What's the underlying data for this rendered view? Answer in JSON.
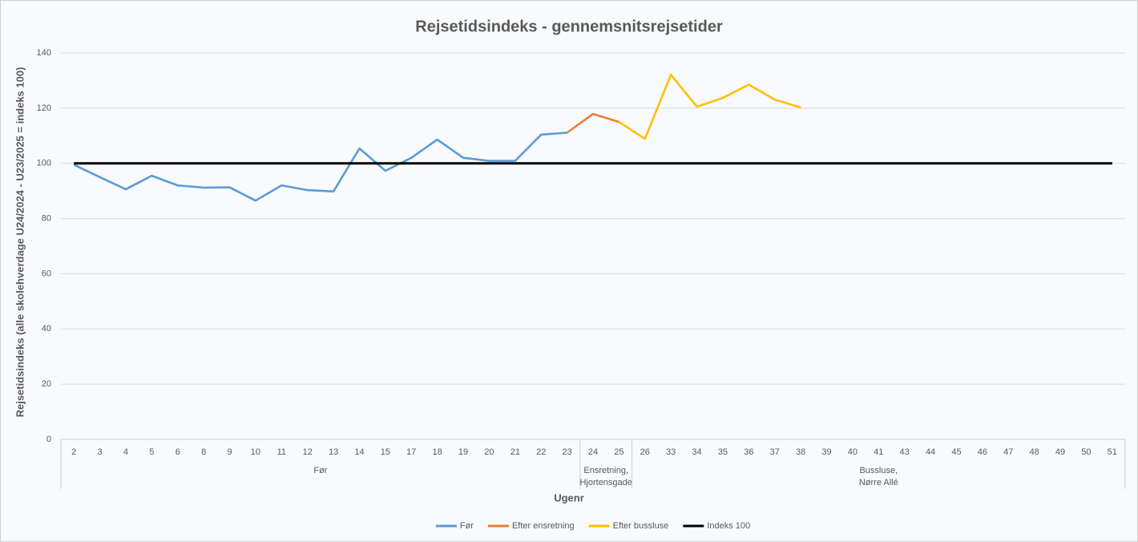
{
  "chart_data": {
    "type": "line",
    "title": "Rejsetidsindeks - gennemsnitsrejsetider",
    "x_label": "Ugenr",
    "y_label": "Rejsetidsindeks (alle skolehverdage U24/2024 - U23/2025 = indeks 100)",
    "categories": [
      "2",
      "3",
      "4",
      "5",
      "6",
      "8",
      "9",
      "10",
      "11",
      "12",
      "13",
      "14",
      "15",
      "17",
      "18",
      "19",
      "20",
      "21",
      "22",
      "23",
      "24",
      "25",
      "26",
      "33",
      "34",
      "35",
      "36",
      "37",
      "38",
      "39",
      "40",
      "41",
      "43",
      "44",
      "45",
      "46",
      "47",
      "48",
      "49",
      "50",
      "51"
    ],
    "groups": [
      {
        "lines": [
          "Før"
        ],
        "start": 0,
        "end": 19
      },
      {
        "lines": [
          "Ensretning,",
          "Hjortensgade"
        ],
        "start": 20,
        "end": 21
      },
      {
        "lines": [
          "Bussluse,",
          "Nørre Allé"
        ],
        "start": 22,
        "end": 40
      }
    ],
    "series": [
      {
        "name": "Før",
        "color": "#5b9bd5",
        "values": [
          99.5,
          95,
          90.6,
          95.5,
          92,
          91.2,
          91.3,
          86.5,
          92,
          90.3,
          89.8,
          105.4,
          97.3,
          102,
          108.6,
          102,
          100.9,
          100.9,
          110.4,
          111.1,
          null,
          null,
          null,
          null,
          null,
          null,
          null,
          null,
          null,
          null,
          null,
          null,
          null,
          null,
          null,
          null,
          null,
          null,
          null,
          null,
          null
        ]
      },
      {
        "name": "Efter ensretning",
        "color": "#ed7d31",
        "values": [
          null,
          null,
          null,
          null,
          null,
          null,
          null,
          null,
          null,
          null,
          null,
          null,
          null,
          null,
          null,
          null,
          null,
          null,
          null,
          111.1,
          117.9,
          115,
          null,
          null,
          null,
          null,
          null,
          null,
          null,
          null,
          null,
          null,
          null,
          null,
          null,
          null,
          null,
          null,
          null,
          null,
          null
        ]
      },
      {
        "name": "Efter bussluse",
        "color": "#ffc000",
        "values": [
          null,
          null,
          null,
          null,
          null,
          null,
          null,
          null,
          null,
          null,
          null,
          null,
          null,
          null,
          null,
          null,
          null,
          null,
          null,
          null,
          null,
          115,
          108.9,
          132.1,
          120.5,
          123.7,
          128.5,
          123.1,
          120.2,
          null,
          null,
          null,
          null,
          null,
          null,
          null,
          null,
          null,
          null,
          null,
          null
        ]
      },
      {
        "name": "Indeks 100",
        "color": "#000000",
        "values": [
          100,
          100,
          100,
          100,
          100,
          100,
          100,
          100,
          100,
          100,
          100,
          100,
          100,
          100,
          100,
          100,
          100,
          100,
          100,
          100,
          100,
          100,
          100,
          100,
          100,
          100,
          100,
          100,
          100,
          100,
          100,
          100,
          100,
          100,
          100,
          100,
          100,
          100,
          100,
          100,
          100
        ]
      }
    ],
    "ylim": [
      0,
      140
    ],
    "yticks": [
      0,
      20,
      40,
      60,
      80,
      100,
      120,
      140
    ],
    "grid": true,
    "legend": "bottom"
  }
}
